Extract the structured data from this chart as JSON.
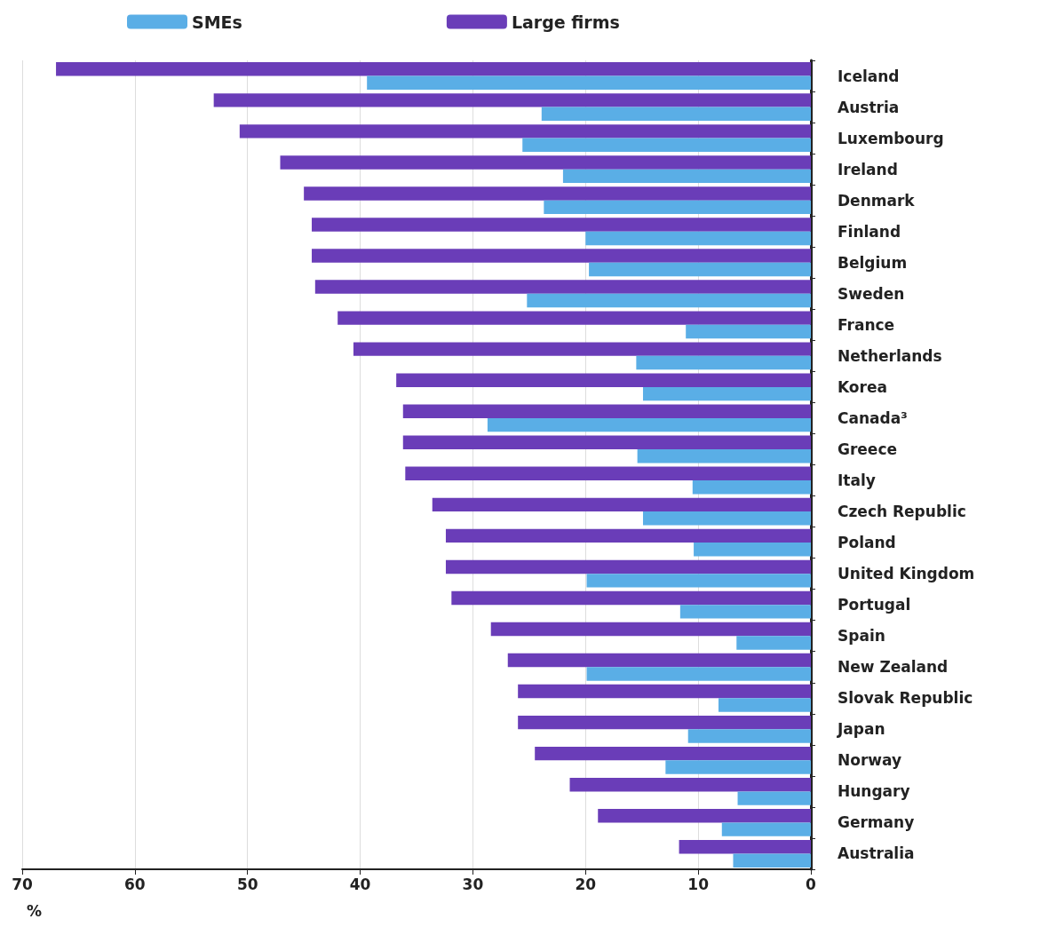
{
  "chart_data": {
    "type": "bar",
    "orientation": "horizontal",
    "xlabel": "%",
    "categories": [
      "Iceland",
      "Austria",
      "Luxembourg",
      "Ireland",
      "Denmark",
      "Finland",
      "Belgium",
      "Sweden",
      "France",
      "Netherlands",
      "Korea",
      "Canada³",
      "Greece",
      "Italy",
      "Czech Republic",
      "Poland",
      "United Kingdom",
      "Portugal",
      "Spain",
      "New Zealand",
      "Slovak Republic",
      "Japan",
      "Norway",
      "Hungary",
      "Germany",
      "Australia"
    ],
    "series": [
      {
        "name": "SMEs",
        "color": "#5aaee6",
        "values": [
          39.4,
          23.9,
          25.6,
          22.0,
          23.7,
          20.0,
          19.7,
          25.2,
          11.1,
          15.5,
          14.9,
          28.7,
          15.4,
          10.5,
          14.9,
          10.4,
          19.9,
          11.6,
          6.6,
          19.9,
          8.2,
          10.9,
          12.9,
          6.5,
          7.9,
          6.9
        ]
      },
      {
        "name": "Large firms",
        "color": "#6a3db8",
        "values": [
          67.0,
          53.0,
          50.7,
          47.1,
          45.0,
          44.3,
          44.3,
          44.0,
          42.0,
          40.6,
          36.8,
          36.2,
          36.2,
          36.0,
          33.6,
          32.4,
          32.4,
          31.9,
          28.4,
          26.9,
          26.0,
          26.0,
          24.5,
          21.4,
          18.9,
          11.7
        ]
      }
    ],
    "xlim": [
      70,
      0
    ],
    "xticks": [
      70,
      60,
      50,
      40,
      30,
      20,
      10,
      0
    ],
    "grid": "x",
    "legend": "top"
  }
}
